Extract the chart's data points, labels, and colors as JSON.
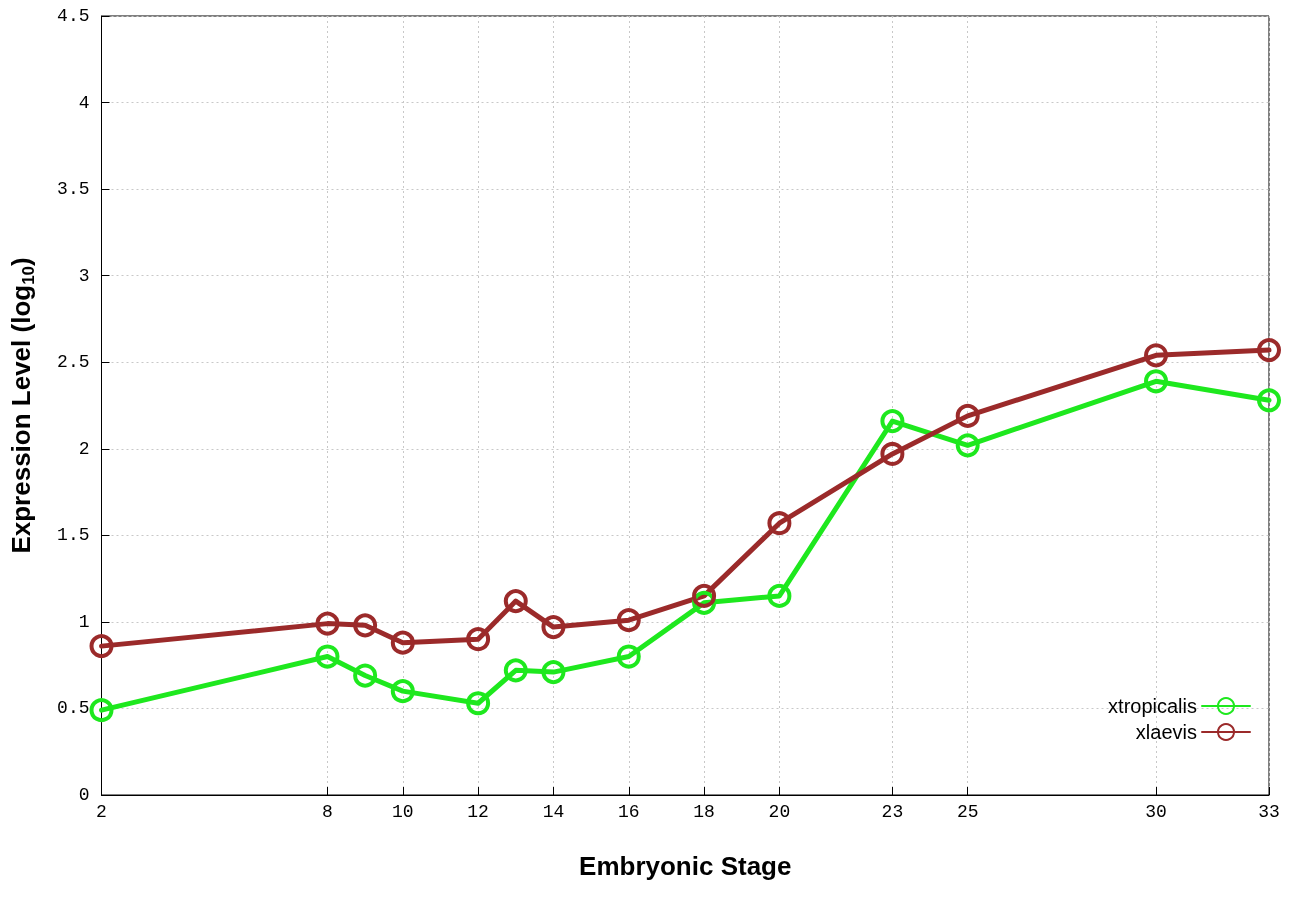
{
  "chart_data": {
    "type": "line",
    "xlabel": "Embryonic Stage",
    "ylabel": "Expression Level (log$_{10}$)",
    "x": [
      2,
      8,
      9,
      10,
      12,
      13,
      14,
      16,
      18,
      20,
      23,
      25,
      30,
      33
    ],
    "series": [
      {
        "name": "xtropicalis",
        "color": "#1ee81e",
        "values": [
          0.49,
          0.8,
          0.69,
          0.6,
          0.53,
          0.72,
          0.71,
          0.8,
          1.11,
          1.15,
          2.16,
          2.02,
          2.39,
          2.28
        ]
      },
      {
        "name": "xlaevis",
        "color": "#9b2a2a",
        "values": [
          0.86,
          0.99,
          0.98,
          0.88,
          0.9,
          1.12,
          0.97,
          1.01,
          1.15,
          1.57,
          1.97,
          2.19,
          2.54,
          2.57
        ]
      }
    ],
    "xlim": [
      2,
      33
    ],
    "xticks": [
      2,
      8,
      10,
      12,
      14,
      16,
      18,
      20,
      23,
      25,
      30,
      33
    ],
    "ylim": [
      0,
      4.5
    ],
    "yticks": [
      0,
      0.5,
      1,
      1.5,
      2,
      2.5,
      3,
      3.5,
      4,
      4.5
    ],
    "grid": true,
    "legend": "bottom right",
    "marker": "circle",
    "line_style": "solid"
  }
}
